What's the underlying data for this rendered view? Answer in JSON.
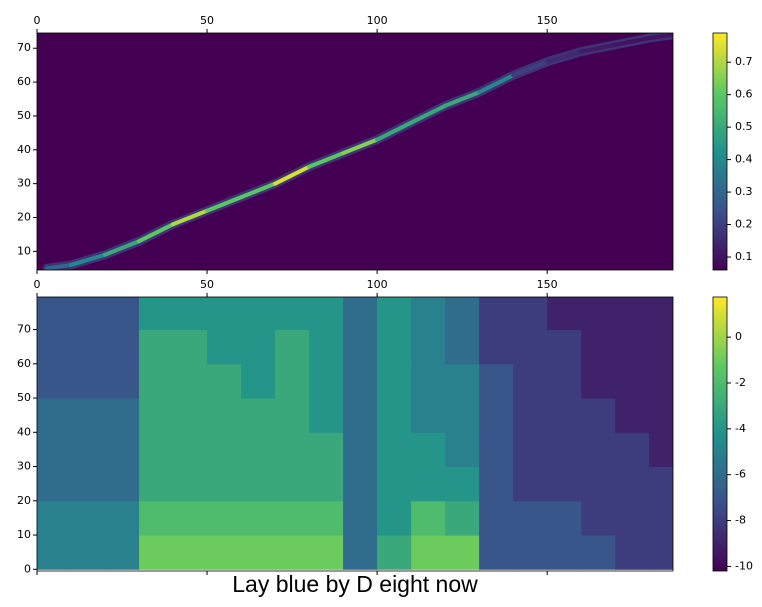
{
  "chart_data": [
    {
      "type": "scatter",
      "x": [
        3,
        10,
        20,
        30,
        40,
        50,
        60,
        70,
        80,
        90,
        100,
        110,
        120,
        130,
        140,
        150,
        160,
        170,
        180,
        187
      ],
      "y": [
        5,
        6,
        9,
        13,
        18,
        22,
        26,
        30,
        35,
        39,
        43,
        48,
        53,
        57,
        62,
        66,
        69,
        71,
        73,
        74
      ],
      "values": [
        0.3,
        0.4,
        0.5,
        0.6,
        0.7,
        0.6,
        0.6,
        0.75,
        0.6,
        0.65,
        0.5,
        0.5,
        0.5,
        0.4,
        0.2,
        0.15,
        0.12,
        0.1,
        0.1,
        0.1
      ],
      "xlim": [
        0,
        187
      ],
      "ylim": [
        4.5,
        74.5
      ],
      "xticks": [
        0,
        50,
        100,
        150
      ],
      "yticks": [
        10,
        20,
        30,
        40,
        50,
        60,
        70
      ],
      "clim": [
        0.06,
        0.79
      ],
      "cticks": [
        0.1,
        0.2,
        0.3,
        0.4,
        0.5,
        0.6,
        0.7
      ]
    },
    {
      "type": "heatmap",
      "xbins": [
        0,
        10,
        20,
        30,
        40,
        50,
        60,
        70,
        80,
        90,
        100,
        110,
        120,
        130,
        140,
        150,
        160,
        170,
        180,
        187
      ],
      "ybins": [
        0,
        10,
        20,
        30,
        40,
        50,
        60,
        70,
        80
      ],
      "z": [
        [
          -5,
          -5,
          -5,
          -1,
          -1,
          -1,
          -1,
          -1,
          -1,
          -6,
          -3,
          -1,
          -1,
          -7,
          -7,
          -7,
          -7,
          -8,
          -8
        ],
        [
          -5,
          -5,
          -5,
          -2,
          -2,
          -2,
          -2,
          -2,
          -2,
          -6,
          -4,
          -2,
          -3,
          -7,
          -7,
          -7,
          -8,
          -8,
          -8
        ],
        [
          -6,
          -6,
          -6,
          -3,
          -3,
          -3,
          -3,
          -3,
          -3,
          -6,
          -4,
          -4,
          -4,
          -7,
          -8,
          -8,
          -8,
          -8,
          -8
        ],
        [
          -6,
          -6,
          -6,
          -3,
          -3,
          -3,
          -3,
          -3,
          -3,
          -6,
          -4,
          -4,
          -5,
          -7,
          -8,
          -8,
          -8,
          -8,
          -9
        ],
        [
          -6,
          -6,
          -6,
          -3,
          -3,
          -3,
          -3,
          -3,
          -4,
          -6,
          -4,
          -5,
          -5,
          -7,
          -8,
          -8,
          -8,
          -9,
          -9
        ],
        [
          -7,
          -7,
          -7,
          -3,
          -3,
          -3,
          -4,
          -3,
          -4,
          -6,
          -4,
          -5,
          -5,
          -7,
          -8,
          -8,
          -9,
          -9,
          -9
        ],
        [
          -7,
          -7,
          -7,
          -3,
          -3,
          -4,
          -4,
          -3,
          -4,
          -6,
          -4,
          -5,
          -6,
          -8,
          -8,
          -8,
          -9,
          -9,
          -9
        ],
        [
          -7,
          -7,
          -7,
          -4,
          -4,
          -4,
          -4,
          -4,
          -4,
          -6,
          -4,
          -5,
          -6,
          -8,
          -8,
          -9,
          -9,
          -9,
          -9
        ]
      ],
      "xlim": [
        0,
        187
      ],
      "ylim": [
        -0.5,
        79.5
      ],
      "xticks": [
        0,
        50,
        100,
        150
      ],
      "yticks": [
        0,
        10,
        20,
        30,
        40,
        50,
        60,
        70
      ],
      "clim": [
        -10.2,
        1.75
      ],
      "cticks": [
        -10,
        -8,
        -6,
        -4,
        -2,
        0
      ]
    }
  ],
  "caption": "Lay blue by D eight now"
}
